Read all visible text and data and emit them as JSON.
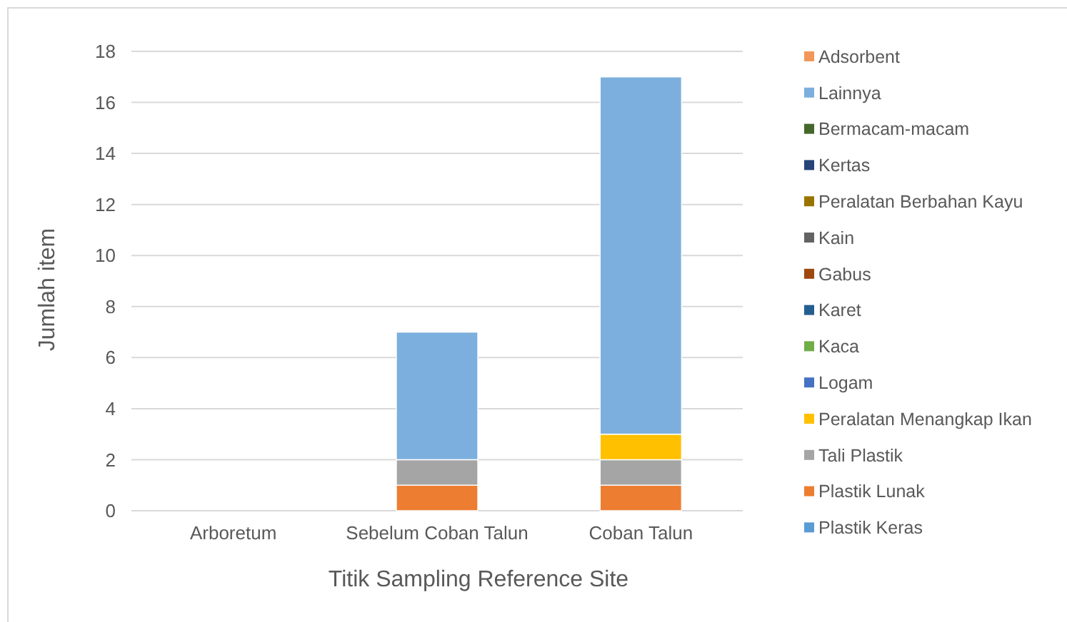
{
  "chart_data": {
    "type": "bar",
    "stacked": true,
    "xlabel": "Titik Sampling Reference Site",
    "ylabel": "Jumlah item",
    "categories": [
      "Arboretum",
      "Sebelum Coban Talun",
      "Coban Talun"
    ],
    "series": [
      {
        "name": "Plastik Keras",
        "color": "#5b9bd5",
        "values": [
          0,
          0,
          0
        ]
      },
      {
        "name": "Plastik Lunak",
        "color": "#ed7d31",
        "values": [
          0,
          1,
          1
        ]
      },
      {
        "name": "Tali Plastik",
        "color": "#a5a5a5",
        "values": [
          0,
          1,
          1
        ]
      },
      {
        "name": "Peralatan Menangkap Ikan",
        "color": "#ffc000",
        "values": [
          0,
          0,
          1
        ]
      },
      {
        "name": "Logam",
        "color": "#4472c4",
        "values": [
          0,
          0,
          0
        ]
      },
      {
        "name": "Kaca",
        "color": "#70ad47",
        "values": [
          0,
          0,
          0
        ]
      },
      {
        "name": "Karet",
        "color": "#255e91",
        "values": [
          0,
          0,
          0
        ]
      },
      {
        "name": "Gabus",
        "color": "#9e480e",
        "values": [
          0,
          0,
          0
        ]
      },
      {
        "name": "Kain",
        "color": "#636363",
        "values": [
          0,
          0,
          0
        ]
      },
      {
        "name": "Peralatan Berbahan Kayu",
        "color": "#997300",
        "values": [
          0,
          0,
          0
        ]
      },
      {
        "name": "Kertas",
        "color": "#264478",
        "values": [
          0,
          0,
          0
        ]
      },
      {
        "name": "Bermacam-macam",
        "color": "#43682b",
        "values": [
          0,
          0,
          0
        ]
      },
      {
        "name": "Lainnya",
        "color": "#7cafdd",
        "values": [
          0,
          5,
          14
        ]
      },
      {
        "name": "Adsorbent",
        "color": "#f1975a",
        "values": [
          0,
          0,
          0
        ]
      }
    ],
    "ylim": [
      0,
      18
    ],
    "yticks": [
      0,
      2,
      4,
      6,
      8,
      10,
      12,
      14,
      16,
      18
    ],
    "grid": true,
    "legend": "right"
  }
}
